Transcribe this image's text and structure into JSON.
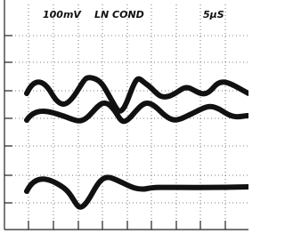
{
  "header": {
    "vertical_scale": "100mV",
    "label": "LN COND",
    "time_scale": "5µS"
  }
}
